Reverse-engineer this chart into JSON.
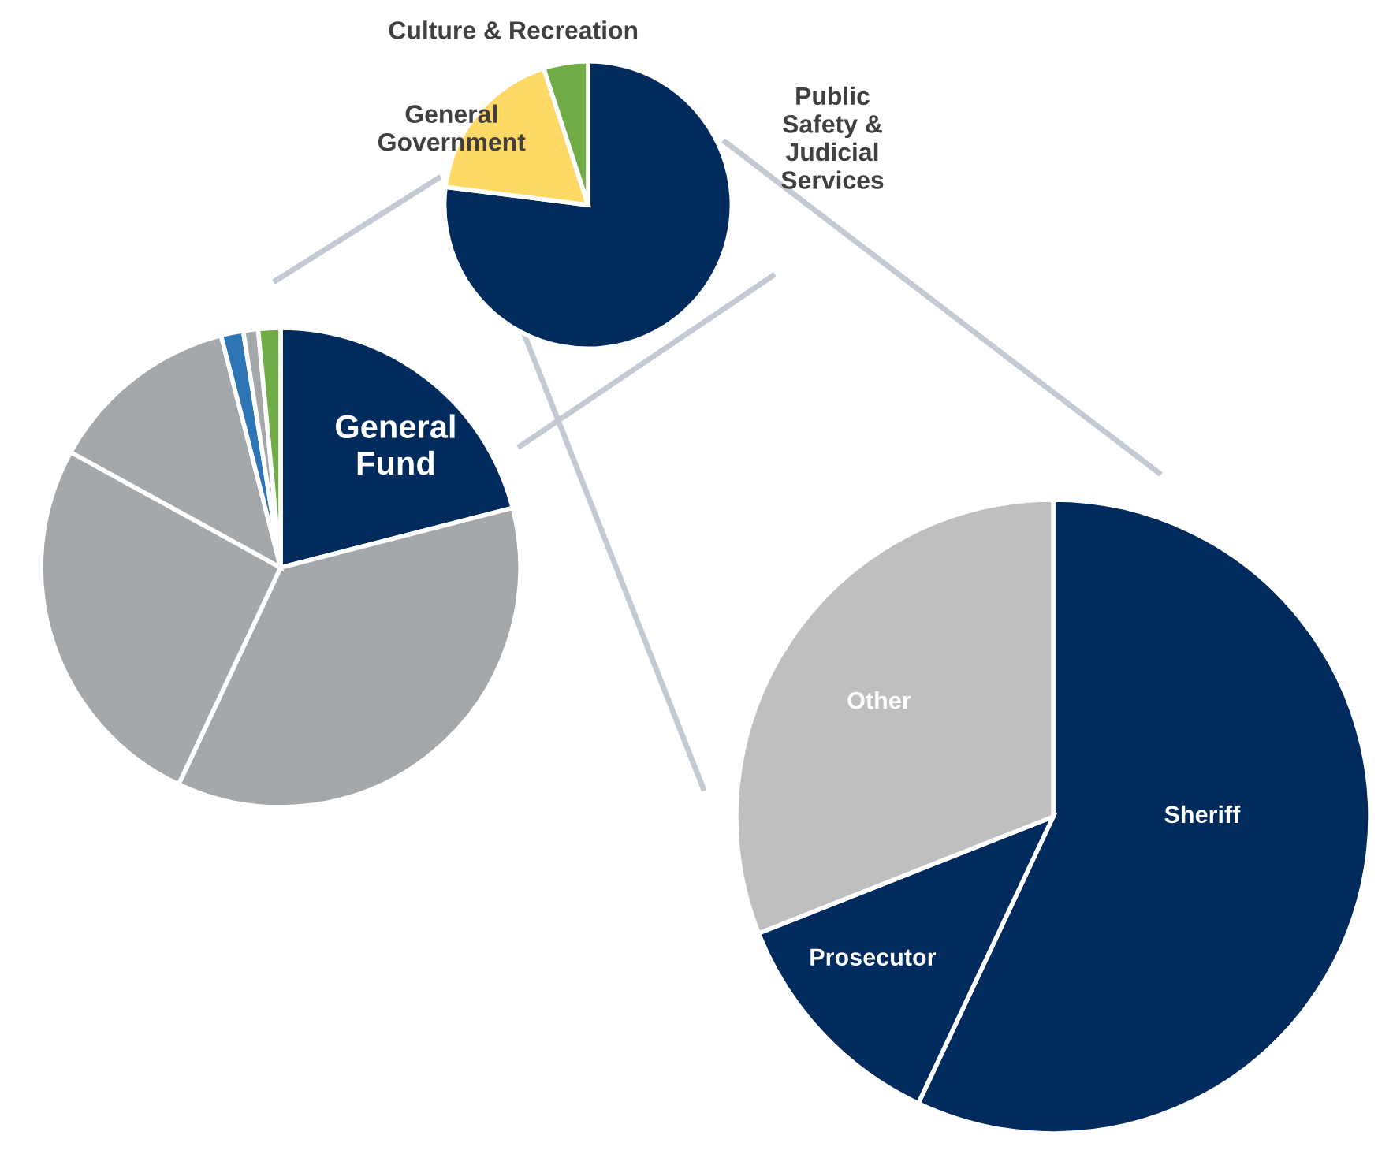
{
  "chart_data": [
    {
      "type": "pie",
      "categories": [
        "Public\nSafety &\nJudicial\nServices",
        "General\nGovernment",
        "Culture & Recreation"
      ],
      "values": [
        77,
        18,
        5
      ],
      "colors": [
        "#002b5c",
        "#ffd966",
        "#70ad47"
      ]
    },
    {
      "type": "pie",
      "categories": [
        "General\nFund",
        null,
        null,
        null,
        null,
        null,
        null
      ],
      "values": [
        21,
        36,
        26,
        13,
        1.5,
        1,
        1.5
      ],
      "colors": [
        "#002b5c",
        "#a5a8ab",
        "#a5a8ab",
        "#a5a8ab",
        "#2e75b6",
        "#a5a8ab",
        "#70ad47"
      ]
    },
    {
      "type": "pie",
      "categories": [
        "Sheriff",
        "Prosecutor",
        "Other"
      ],
      "values": [
        57,
        12,
        31
      ],
      "colors": [
        "#002b5c",
        "#002b5c",
        "#bfbfbf"
      ]
    }
  ]
}
